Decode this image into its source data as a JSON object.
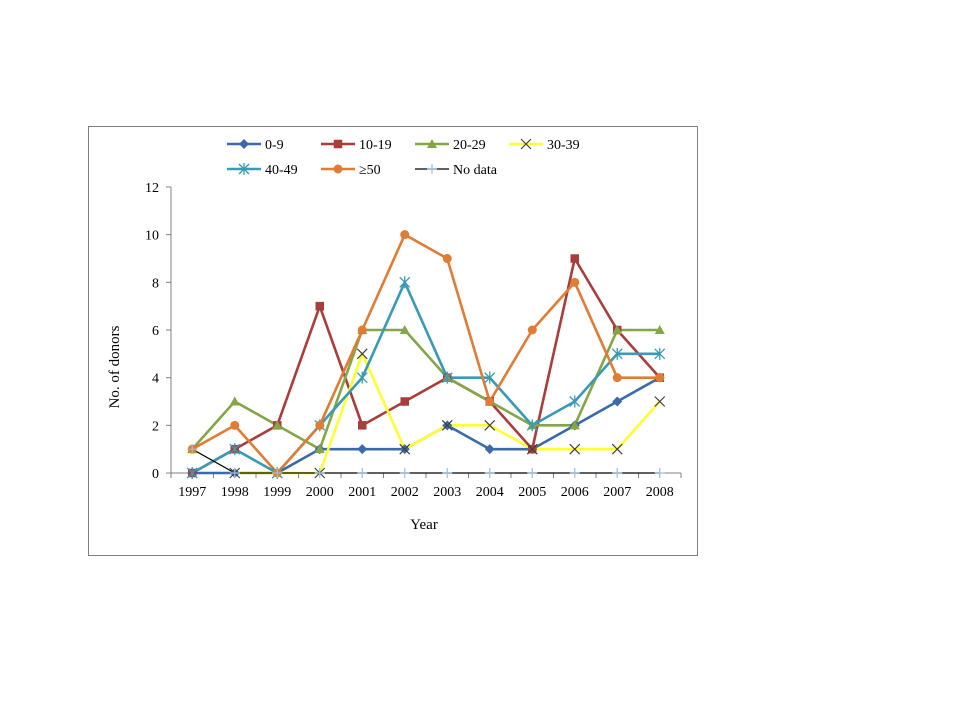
{
  "chart_data": {
    "type": "line",
    "title": "",
    "xlabel": "Year",
    "ylabel": "No. of donors",
    "ylim": [
      0,
      12
    ],
    "yticks": [
      0,
      2,
      4,
      6,
      8,
      10,
      12
    ],
    "categories": [
      "1997",
      "1998",
      "1999",
      "2000",
      "2001",
      "2002",
      "2003",
      "2004",
      "2005",
      "2006",
      "2007",
      "2008"
    ],
    "legend_placement": "top",
    "grid": false,
    "series": [
      {
        "name": "0-9",
        "color": "#3B6AA8",
        "marker": "diamond",
        "values": [
          0,
          0,
          0,
          1,
          1,
          1,
          2,
          1,
          1,
          2,
          3,
          4
        ]
      },
      {
        "name": "10-19",
        "color": "#A93D3B",
        "marker": "square",
        "values": [
          0,
          1,
          2,
          7,
          2,
          3,
          4,
          3,
          1,
          9,
          6,
          4
        ]
      },
      {
        "name": "20-29",
        "color": "#84A646",
        "marker": "triangle",
        "values": [
          1,
          3,
          2,
          1,
          6,
          6,
          4,
          3,
          2,
          2,
          6,
          6
        ]
      },
      {
        "name": "30-39",
        "color": "#FFFF33",
        "marker": "x",
        "marker_color": "#404040",
        "values": [
          null,
          0,
          0,
          0,
          5,
          1,
          2,
          2,
          1,
          1,
          1,
          3
        ]
      },
      {
        "name": "40-49",
        "color": "#3A9AB5",
        "marker": "star",
        "values": [
          0,
          1,
          0,
          2,
          4,
          8,
          4,
          4,
          2,
          3,
          5,
          5
        ]
      },
      {
        "name": "≥50",
        "color": "#E07C33",
        "marker": "circle",
        "values": [
          1,
          2,
          0,
          2,
          6,
          10,
          9,
          3,
          6,
          8,
          4,
          4
        ]
      },
      {
        "name": "No data",
        "color": "#000000",
        "marker": "plus",
        "line_color": "#000000",
        "marker_color": "#9DBFDB",
        "values": [
          1,
          0,
          0,
          0,
          0,
          0,
          0,
          0,
          0,
          0,
          0,
          0
        ]
      }
    ]
  }
}
